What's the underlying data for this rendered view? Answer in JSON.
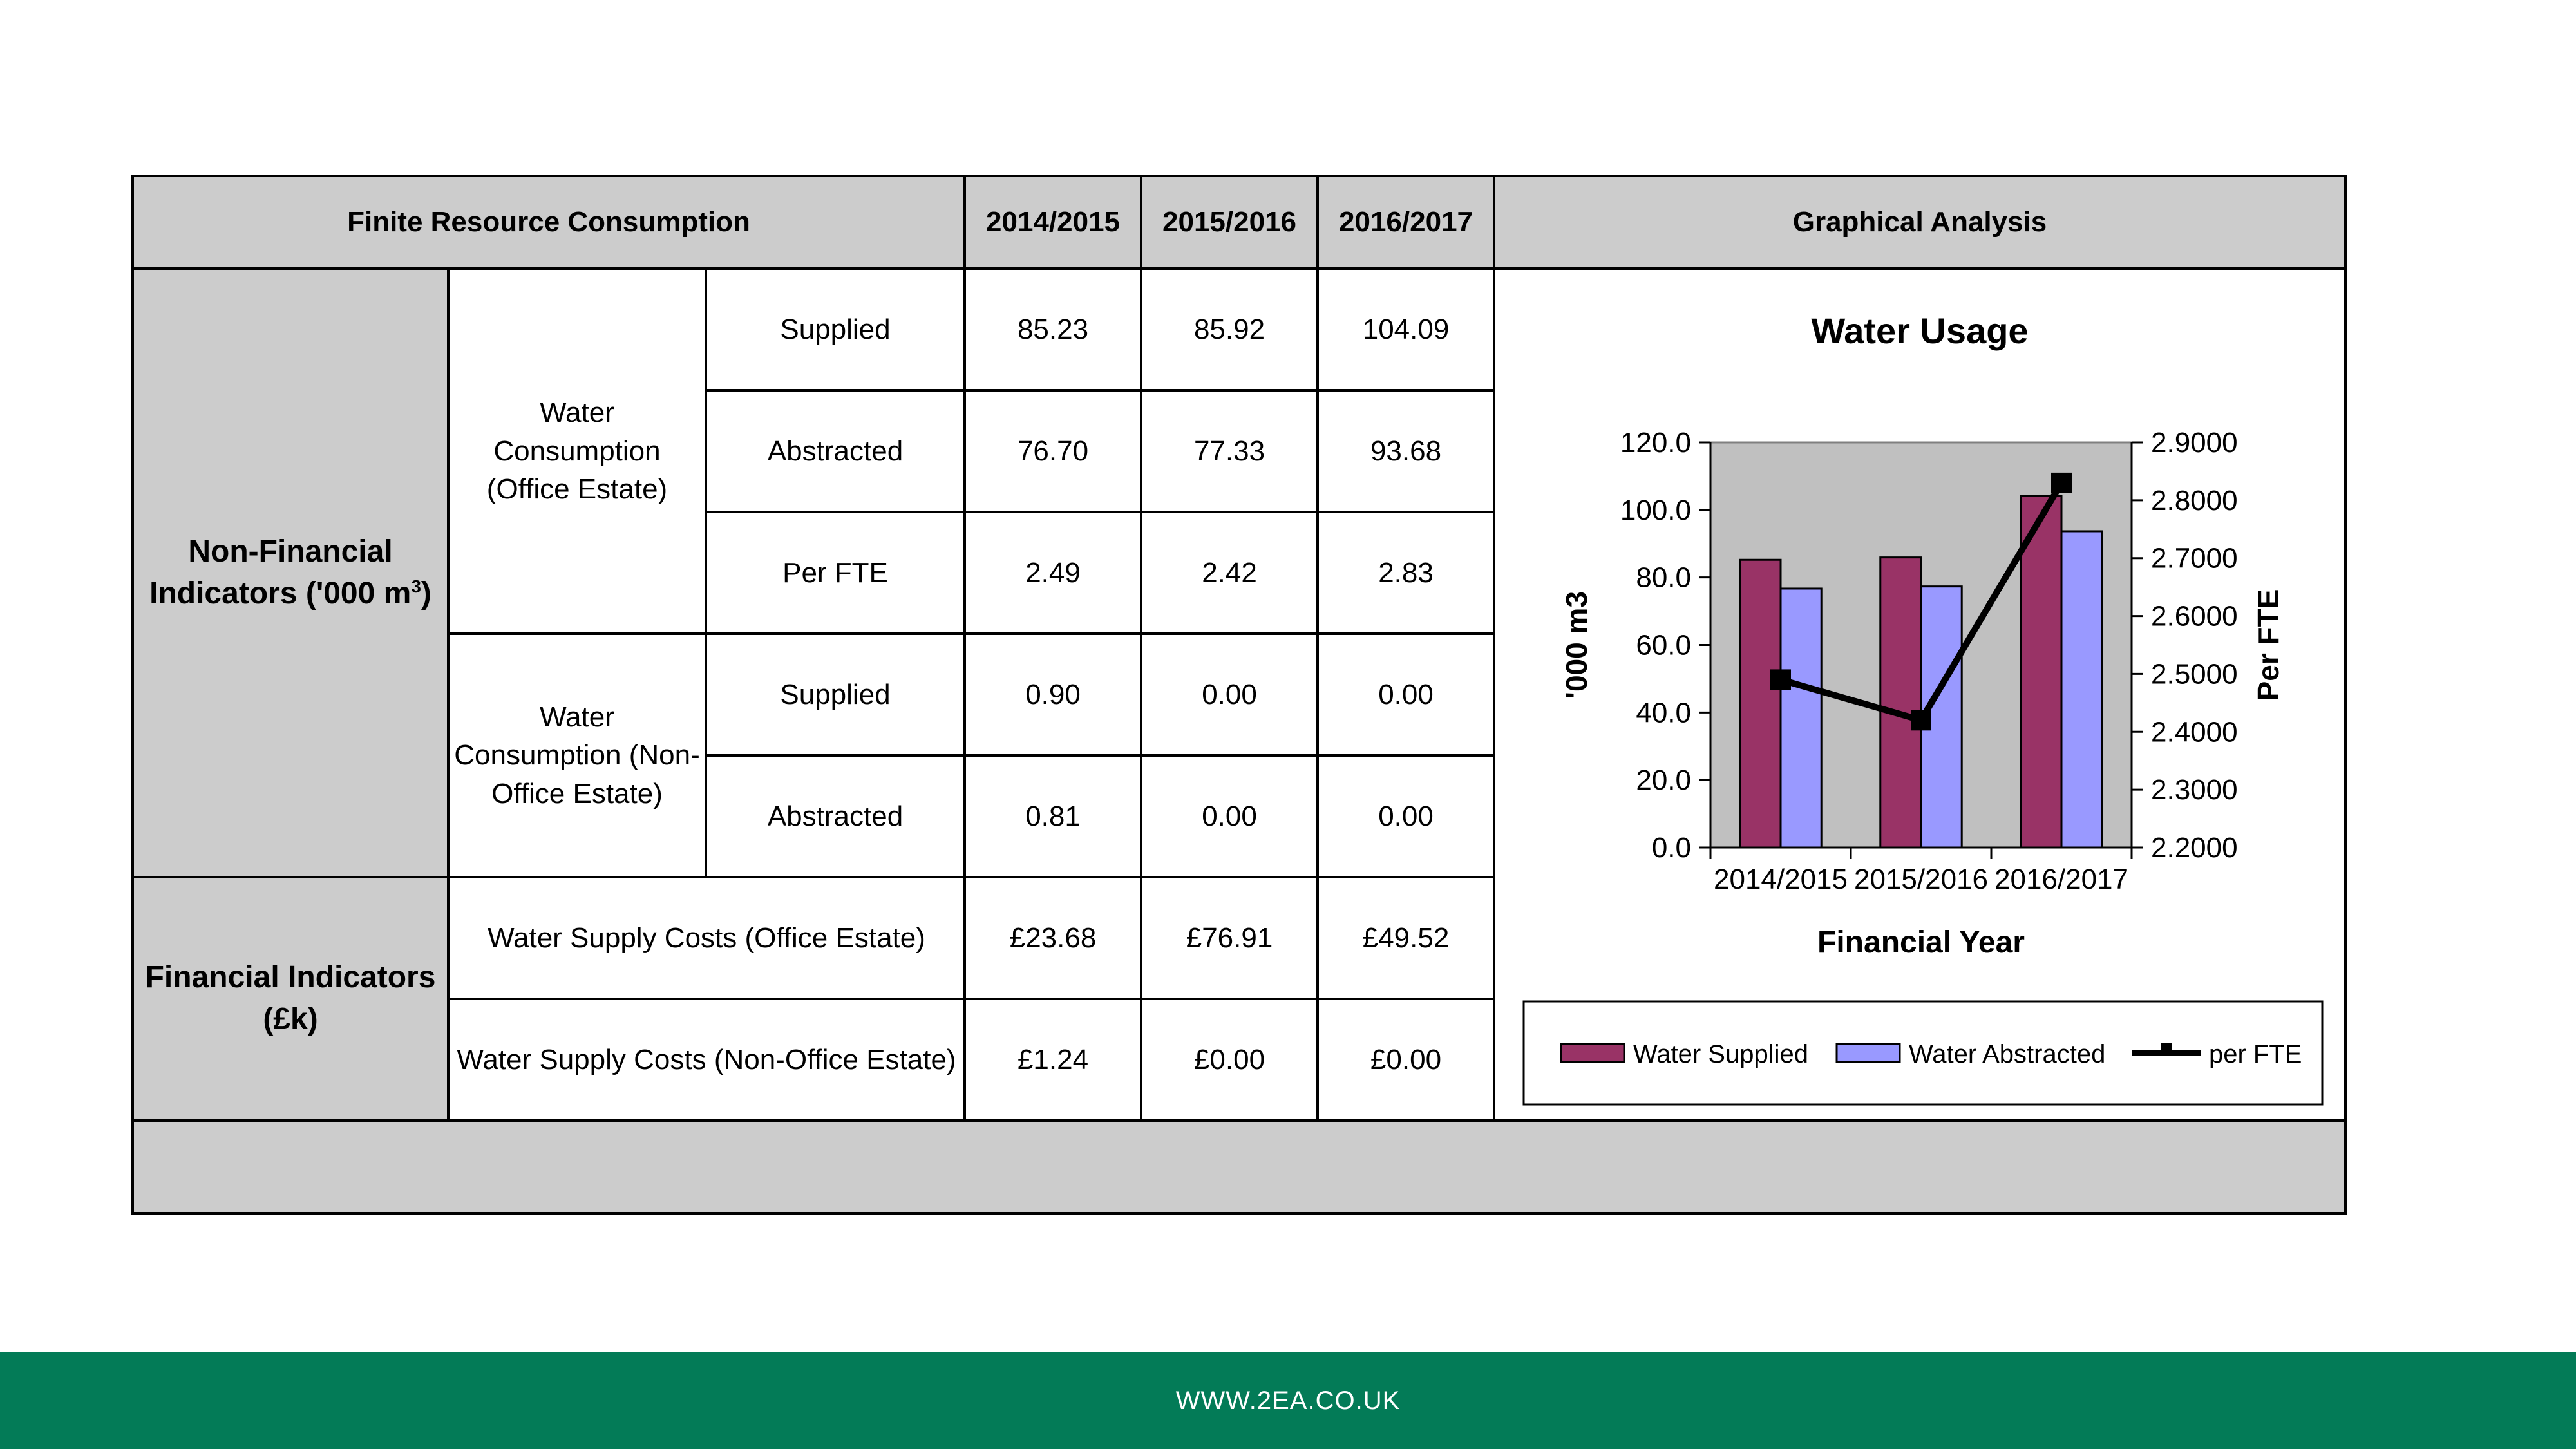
{
  "table": {
    "header": {
      "title": "Finite Resource Consumption",
      "years": [
        "2014/2015",
        "2015/2016",
        "2016/2017"
      ],
      "graph": "Graphical Analysis"
    },
    "non_financial": {
      "label_main": "Non-Financial Indicators ('000 m",
      "label_sup": "3",
      "label_end": ")",
      "office": {
        "label": "Water Consumption (Office Estate)",
        "rows": [
          {
            "label": "Supplied",
            "values": [
              "85.23",
              "85.92",
              "104.09"
            ]
          },
          {
            "label": "Abstracted",
            "values": [
              "76.70",
              "77.33",
              "93.68"
            ]
          },
          {
            "label": "Per FTE",
            "values": [
              "2.49",
              "2.42",
              "2.83"
            ]
          }
        ]
      },
      "non_office": {
        "label": "Water Consumption (Non-Office Estate)",
        "rows": [
          {
            "label": "Supplied",
            "values": [
              "0.90",
              "0.00",
              "0.00"
            ]
          },
          {
            "label": "Abstracted",
            "values": [
              "0.81",
              "0.00",
              "0.00"
            ]
          }
        ]
      }
    },
    "financial": {
      "label": "Financial Indicators (£k)",
      "rows": [
        {
          "label": "Water Supply Costs (Office Estate)",
          "values": [
            "£23.68",
            "£76.91",
            "£49.52"
          ]
        },
        {
          "label": "Water Supply Costs (Non-Office Estate)",
          "values": [
            "£1.24",
            "£0.00",
            "£0.00"
          ]
        }
      ]
    }
  },
  "chart_data": {
    "type": "bar",
    "title": "Water Usage",
    "xlabel": "Financial Year",
    "ylabel": "'000 m3",
    "y2label": "Per FTE",
    "categories": [
      "2014/2015",
      "2015/2016",
      "2016/2017"
    ],
    "ylim": [
      0,
      120
    ],
    "y_ticks": [
      "0.0",
      "20.0",
      "40.0",
      "60.0",
      "80.0",
      "100.0",
      "120.0"
    ],
    "y2lim": [
      2.2,
      2.9
    ],
    "y2_ticks": [
      "2.2000",
      "2.3000",
      "2.4000",
      "2.5000",
      "2.6000",
      "2.7000",
      "2.8000",
      "2.9000"
    ],
    "plot_background": "#c0c0c0",
    "legend_position": "bottom",
    "series": [
      {
        "name": "Water Supplied",
        "kind": "bar",
        "color": "#993366",
        "values": [
          85.23,
          85.92,
          104.09
        ]
      },
      {
        "name": "Water Abstracted",
        "kind": "bar",
        "color": "#9999ff",
        "values": [
          76.7,
          77.33,
          93.68
        ]
      },
      {
        "name": "per FTE",
        "kind": "line",
        "axis": "secondary",
        "color": "#000000",
        "values": [
          2.49,
          2.42,
          2.83
        ]
      }
    ]
  },
  "footer": {
    "url": "WWW.2EA.CO.UK",
    "color": "#037b57"
  }
}
